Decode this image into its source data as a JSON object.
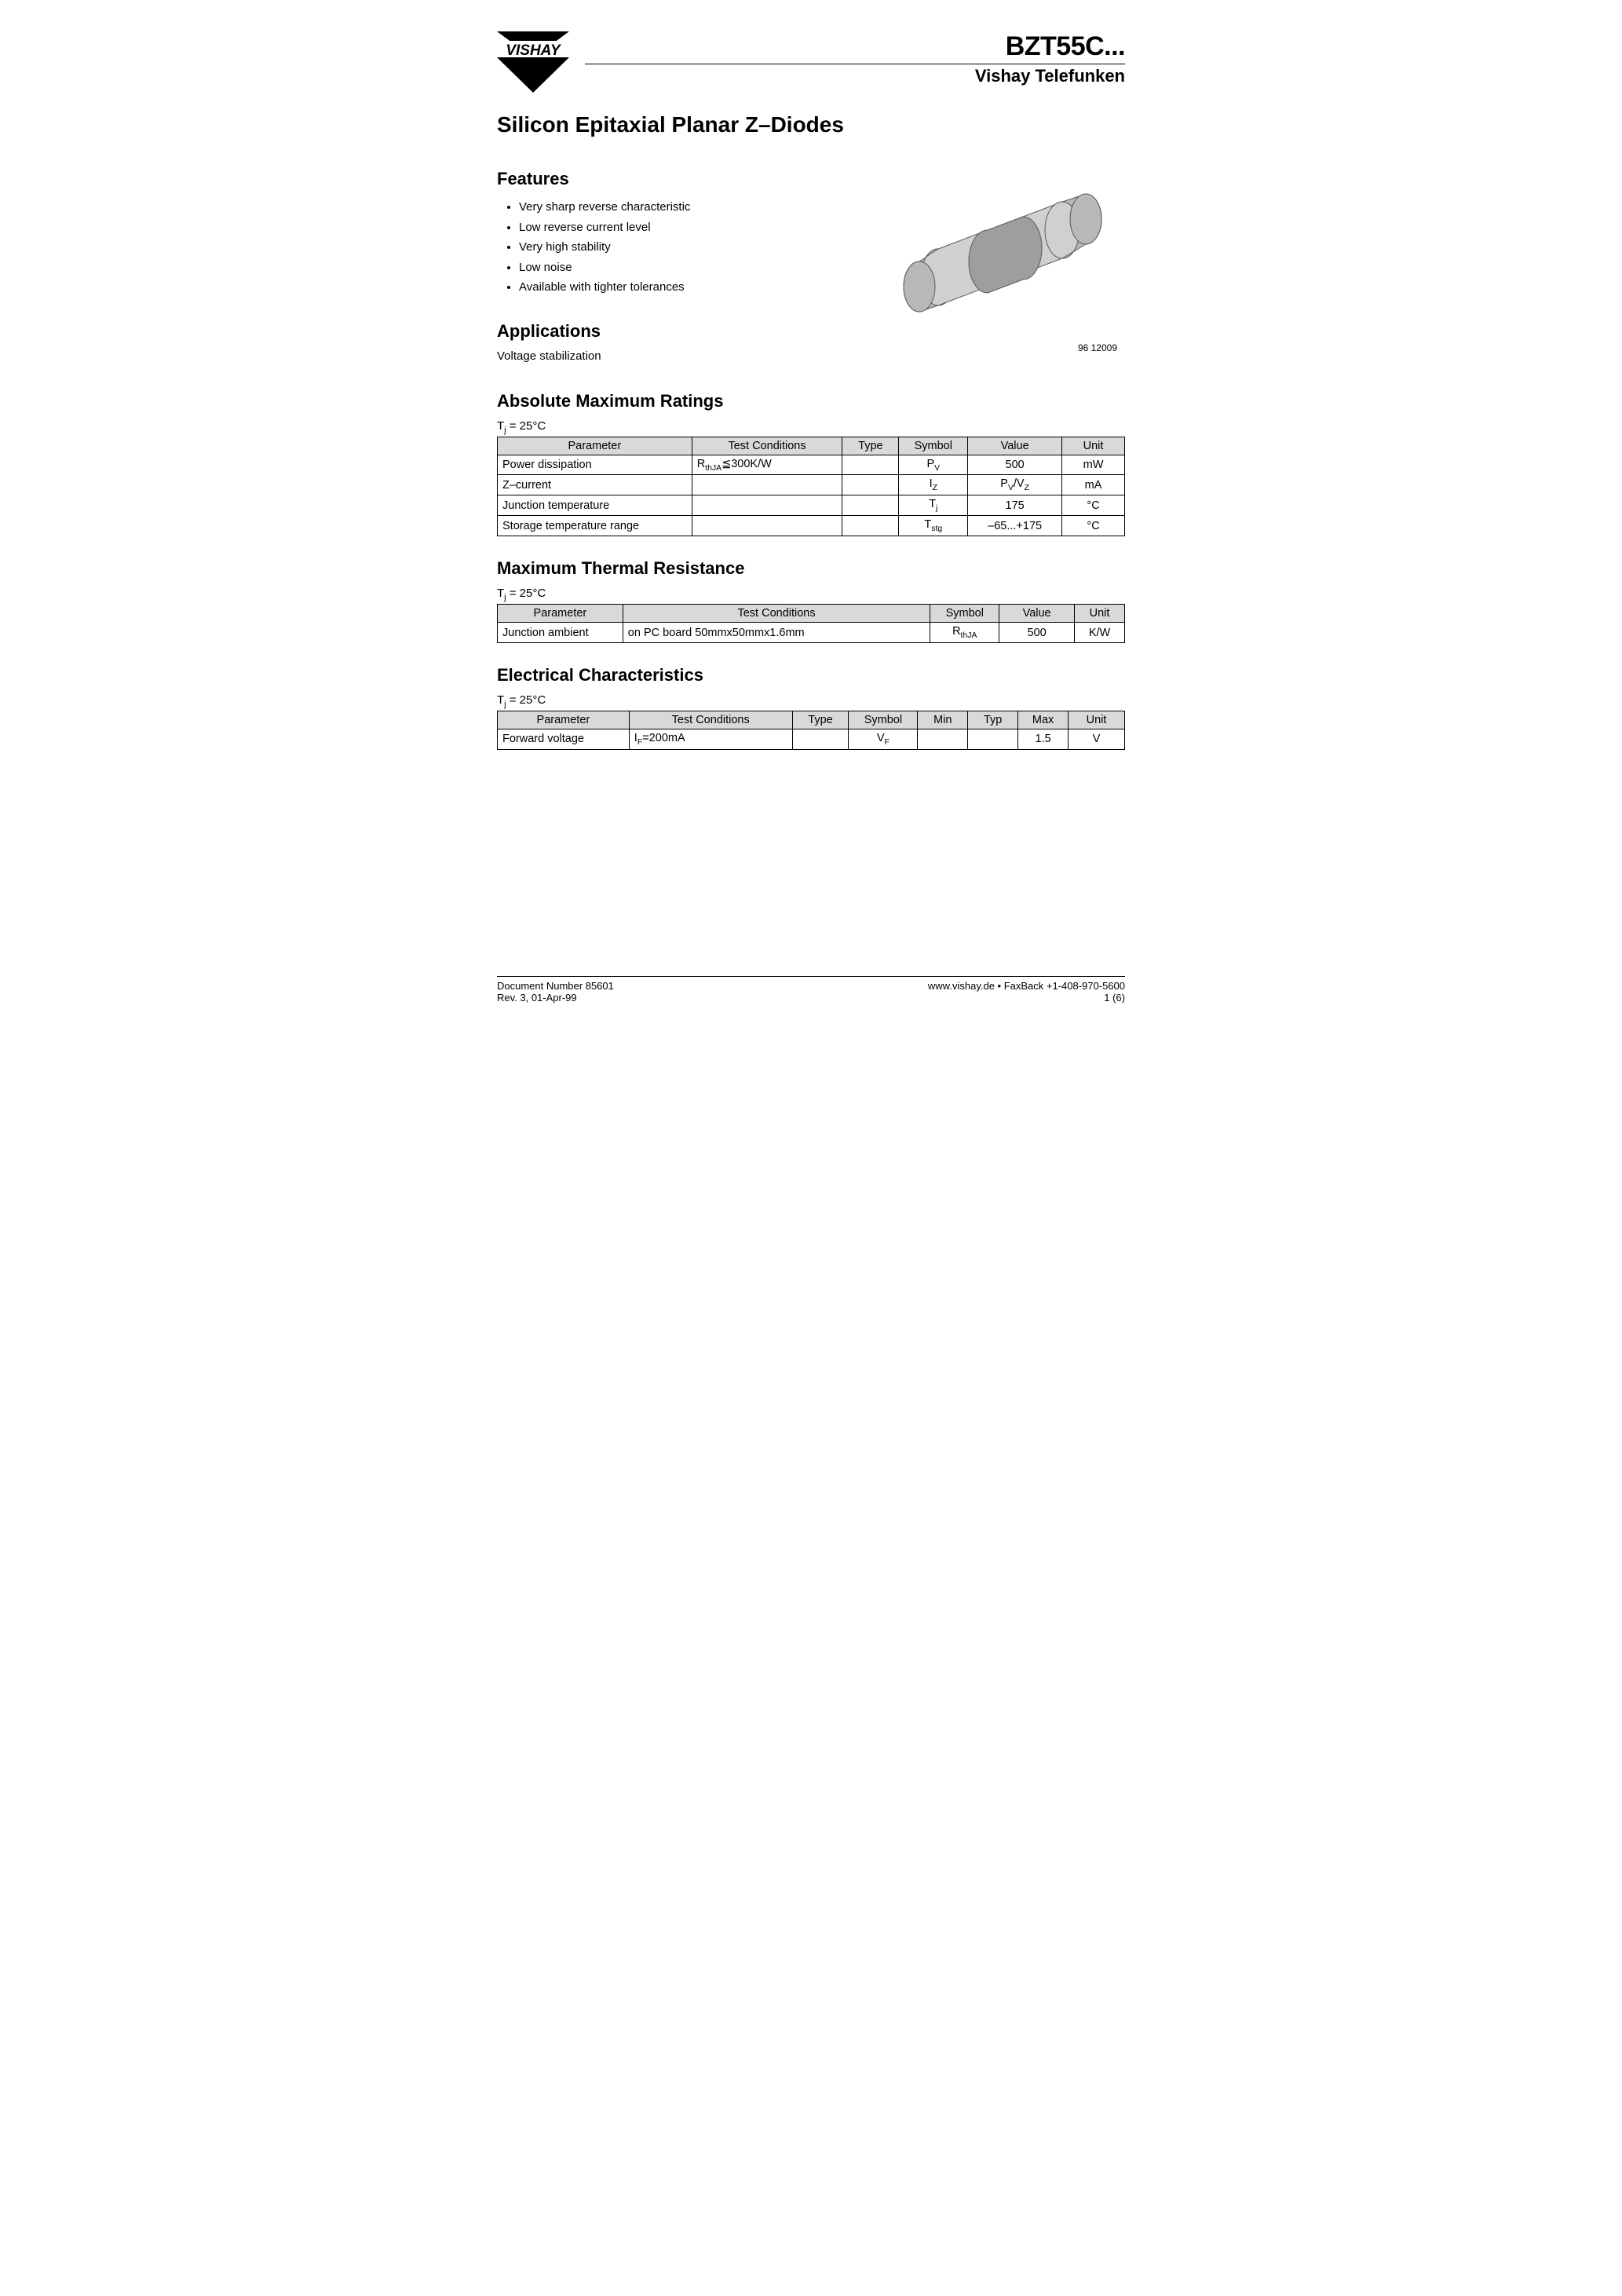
{
  "header": {
    "logo_text": "VISHAY",
    "part_number": "BZT55C...",
    "brand": "Vishay Telefunken"
  },
  "main_title": "Silicon Epitaxial Planar Z–Diodes",
  "features": {
    "heading": "Features",
    "items": [
      "Very sharp reverse characteristic",
      "Low reverse current level",
      "Very high stability",
      "Low noise",
      "Available with tighter tolerances"
    ]
  },
  "applications": {
    "heading": "Applications",
    "text": "Voltage stabilization"
  },
  "diagram": {
    "caption": "96 12009",
    "body_fill": "#d0d0d0",
    "band_fill": "#9e9e9e",
    "cap_fill": "#b8b8b8",
    "stroke": "#5a5a5a"
  },
  "abs_max": {
    "heading": "Absolute Maximum Ratings",
    "condition": "Tj = 25°C",
    "condition_symbol": "T",
    "condition_sub": "j",
    "condition_rest": " = 25°C",
    "columns": [
      "Parameter",
      "Test Conditions",
      "Type",
      "Symbol",
      "Value",
      "Unit"
    ],
    "rows": [
      {
        "parameter": "Power dissipation",
        "test_html": "R<span class='sub'>thJA</span>≦300K/W",
        "type": "",
        "symbol_html": "P<span class='sub'>V</span>",
        "value": "500",
        "unit": "mW"
      },
      {
        "parameter": "Z–current",
        "test_html": "",
        "type": "",
        "symbol_html": "I<span class='sub'>Z</span>",
        "value": "P<span class='sub'>V</span>/V<span class='sub'>Z</span>",
        "unit": "mA"
      },
      {
        "parameter": "Junction temperature",
        "test_html": "",
        "type": "",
        "symbol_html": "T<span class='sub'>j</span>",
        "value": "175",
        "unit": "°C"
      },
      {
        "parameter": "Storage temperature range",
        "test_html": "",
        "type": "",
        "symbol_html": "T<span class='sub'>stg</span>",
        "value": "–65...+175",
        "unit": "°C"
      }
    ]
  },
  "thermal": {
    "heading": "Maximum Thermal Resistance",
    "condition_symbol": "T",
    "condition_sub": "j",
    "condition_rest": " = 25°C",
    "columns": [
      "Parameter",
      "Test Conditions",
      "Symbol",
      "Value",
      "Unit"
    ],
    "rows": [
      {
        "parameter": "Junction ambient",
        "test": "on PC board 50mmx50mmx1.6mm",
        "symbol_html": "R<span class='sub'>thJA</span>",
        "value": "500",
        "unit": "K/W"
      }
    ]
  },
  "electrical": {
    "heading": "Electrical Characteristics",
    "condition_symbol": "T",
    "condition_sub": "j",
    "condition_rest": " = 25°C",
    "columns": [
      "Parameter",
      "Test Conditions",
      "Type",
      "Symbol",
      "Min",
      "Typ",
      "Max",
      "Unit"
    ],
    "rows": [
      {
        "parameter": "Forward voltage",
        "test_html": "I<span class='sub'>F</span>=200mA",
        "type": "",
        "symbol_html": "V<span class='sub'>F</span>",
        "min": "",
        "typ": "",
        "max": "1.5",
        "unit": "V"
      }
    ]
  },
  "footer": {
    "doc_number": "Document Number 85601",
    "revision": "Rev. 3, 01-Apr-99",
    "url_fax": "www.vishay.de • FaxBack +1-408-970-5600",
    "page": "1 (6)"
  }
}
